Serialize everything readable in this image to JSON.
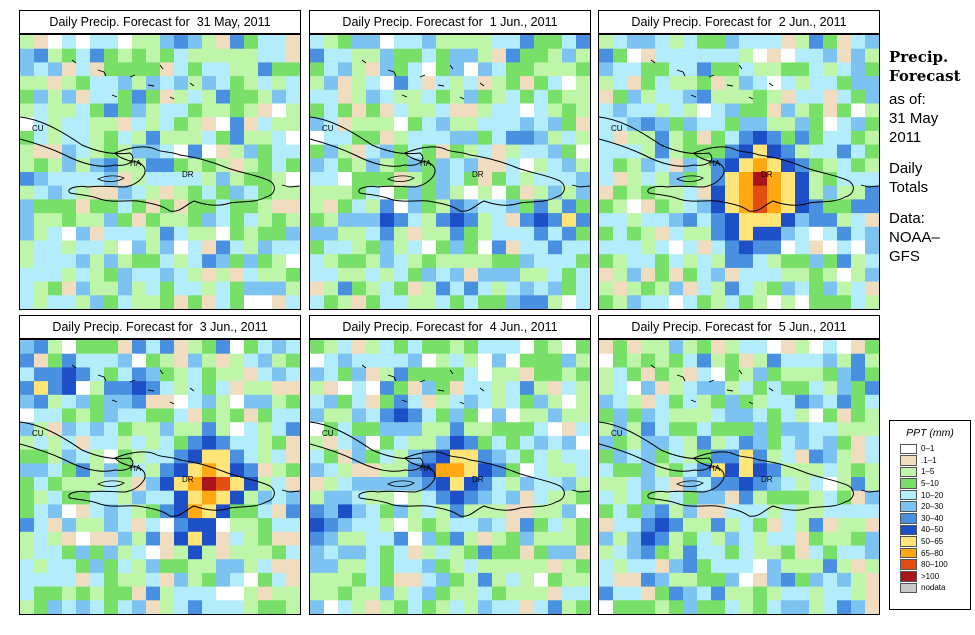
{
  "palette": {
    "0-1": "#ffffff",
    ".1-1": "#f0dcbe",
    "1-5": "#bff5a8",
    "5-10": "#78e068",
    "10-20": "#b3ecfa",
    "20-30": "#7cc3f1",
    "30-40": "#4a90e0",
    "40-50": "#1d4fc6",
    "50-65": "#ffe478",
    "65-80": "#ffa814",
    "80-100": "#e34d12",
    ">100": "#a8161a",
    "nodata": "#c8c8c8"
  },
  "panels": [
    {
      "title": "Daily Precip. Forecast for  31 May, 2011",
      "peak": 0
    },
    {
      "title": "Daily Precip. Forecast for  1 Jun., 2011",
      "peak": 1
    },
    {
      "title": "Daily Precip. Forecast for  2 Jun., 2011",
      "peak": 2
    },
    {
      "title": "Daily Precip. Forecast for  3 Jun., 2011",
      "peak": 3
    },
    {
      "title": "Daily Precip. Forecast for  4 Jun., 2011",
      "peak": 4
    },
    {
      "title": "Daily Precip. Forecast for  5 Jun., 2011",
      "peak": 5
    }
  ],
  "map_labels": {
    "cuba": "CU",
    "haiti": "HA",
    "dominican_republic": "DR"
  },
  "sidebar": {
    "title_line1": "Precip.",
    "title_line2": "Forecast",
    "asof_label": "as of:",
    "date_line1": "31 May",
    "date_line2": "2011",
    "totals_line1": "Daily",
    "totals_line2": "Totals",
    "data_line1": "Data:",
    "data_line2": "NOAA–",
    "data_line3": "GFS"
  },
  "legend": {
    "title": "PPT (mm)",
    "items": [
      {
        "label": "0–1",
        "color": "#ffffff"
      },
      {
        "label": ".1–1",
        "color": "#f0dcbe"
      },
      {
        "label": "1–5",
        "color": "#bff5a8"
      },
      {
        "label": "5–10",
        "color": "#78e068"
      },
      {
        "label": "10–20",
        "color": "#b3ecfa"
      },
      {
        "label": "20–30",
        "color": "#7cc3f1"
      },
      {
        "label": "30–40",
        "color": "#4a90e0"
      },
      {
        "label": "40–50",
        "color": "#1d4fc6"
      },
      {
        "label": "50–65",
        "color": "#ffe478"
      },
      {
        "label": "65–80",
        "color": "#ffa814"
      },
      {
        "label": "80–100",
        "color": "#e34d12"
      },
      {
        "label": ">100",
        "color": "#a8161a"
      },
      {
        "label": "nodata",
        "color": "#c8c8c8"
      }
    ]
  }
}
